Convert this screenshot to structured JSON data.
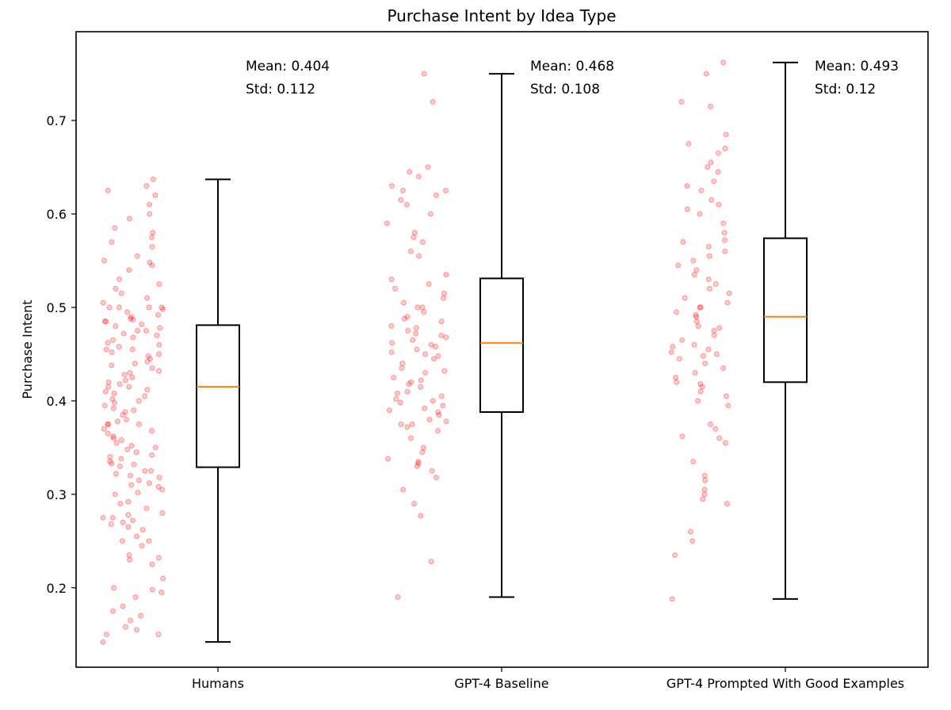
{
  "chart_data": {
    "type": "box",
    "title": "Purchase Intent by Idea Type",
    "xlabel": "",
    "ylabel": "Purchase Intent",
    "ylim": [
      0.115,
      0.795
    ],
    "yticks": [
      0.2,
      0.3,
      0.4,
      0.5,
      0.6,
      0.7
    ],
    "ytick_labels": [
      "0.2",
      "0.3",
      "0.4",
      "0.5",
      "0.6",
      "0.7"
    ],
    "grid": false,
    "colors": {
      "points": "#ff0000",
      "median": "#ff7f0e",
      "box": "#000000"
    },
    "groups": [
      {
        "label": "Humans",
        "box": {
          "whisker_low": 0.142,
          "q1": 0.329,
          "median": 0.415,
          "q3": 0.481,
          "whisker_high": 0.637
        },
        "annotation": {
          "mean": "Mean: 0.404",
          "std": "Std: 0.112"
        },
        "points": [
          0.142,
          0.15,
          0.15,
          0.155,
          0.158,
          0.165,
          0.17,
          0.175,
          0.18,
          0.19,
          0.195,
          0.198,
          0.2,
          0.21,
          0.225,
          0.23,
          0.232,
          0.235,
          0.245,
          0.25,
          0.25,
          0.255,
          0.262,
          0.265,
          0.268,
          0.27,
          0.272,
          0.275,
          0.275,
          0.278,
          0.28,
          0.285,
          0.29,
          0.292,
          0.3,
          0.302,
          0.305,
          0.308,
          0.31,
          0.312,
          0.315,
          0.318,
          0.32,
          0.322,
          0.325,
          0.325,
          0.33,
          0.332,
          0.333,
          0.335,
          0.338,
          0.34,
          0.342,
          0.345,
          0.348,
          0.35,
          0.352,
          0.355,
          0.358,
          0.36,
          0.362,
          0.365,
          0.368,
          0.37,
          0.375,
          0.375,
          0.375,
          0.378,
          0.38,
          0.385,
          0.388,
          0.39,
          0.392,
          0.395,
          0.398,
          0.4,
          0.402,
          0.405,
          0.408,
          0.41,
          0.412,
          0.415,
          0.415,
          0.418,
          0.42,
          0.422,
          0.425,
          0.428,
          0.43,
          0.432,
          0.435,
          0.438,
          0.44,
          0.442,
          0.445,
          0.448,
          0.45,
          0.452,
          0.455,
          0.455,
          0.458,
          0.46,
          0.462,
          0.465,
          0.468,
          0.47,
          0.472,
          0.475,
          0.475,
          0.478,
          0.48,
          0.482,
          0.485,
          0.485,
          0.487,
          0.488,
          0.49,
          0.492,
          0.495,
          0.498,
          0.5,
          0.5,
          0.5,
          0.5,
          0.505,
          0.51,
          0.515,
          0.52,
          0.525,
          0.53,
          0.54,
          0.545,
          0.548,
          0.55,
          0.555,
          0.565,
          0.57,
          0.575,
          0.58,
          0.585,
          0.595,
          0.6,
          0.61,
          0.62,
          0.625,
          0.63,
          0.637
        ]
      },
      {
        "label": "GPT-4 Baseline",
        "box": {
          "whisker_low": 0.19,
          "q1": 0.388,
          "median": 0.462,
          "q3": 0.531,
          "whisker_high": 0.75
        },
        "annotation": {
          "mean": "Mean: 0.468",
          "std": "Std: 0.108"
        },
        "points": [
          0.19,
          0.228,
          0.277,
          0.29,
          0.305,
          0.318,
          0.325,
          0.33,
          0.333,
          0.335,
          0.338,
          0.345,
          0.35,
          0.36,
          0.368,
          0.372,
          0.375,
          0.375,
          0.378,
          0.38,
          0.385,
          0.388,
          0.39,
          0.392,
          0.395,
          0.398,
          0.4,
          0.402,
          0.405,
          0.408,
          0.41,
          0.415,
          0.418,
          0.42,
          0.422,
          0.425,
          0.43,
          0.432,
          0.435,
          0.44,
          0.445,
          0.448,
          0.45,
          0.452,
          0.455,
          0.458,
          0.46,
          0.462,
          0.465,
          0.468,
          0.47,
          0.472,
          0.475,
          0.478,
          0.48,
          0.485,
          0.488,
          0.49,
          0.495,
          0.5,
          0.5,
          0.505,
          0.51,
          0.515,
          0.52,
          0.525,
          0.53,
          0.535,
          0.555,
          0.56,
          0.57,
          0.575,
          0.58,
          0.59,
          0.6,
          0.61,
          0.615,
          0.62,
          0.625,
          0.625,
          0.63,
          0.64,
          0.645,
          0.65,
          0.72,
          0.75
        ]
      },
      {
        "label": "GPT-4 Prompted With Good Examples",
        "box": {
          "whisker_low": 0.188,
          "q1": 0.42,
          "median": 0.49,
          "q3": 0.574,
          "whisker_high": 0.762
        },
        "annotation": {
          "mean": "Mean: 0.493",
          "std": "Std: 0.12"
        },
        "points": [
          0.188,
          0.235,
          0.25,
          0.26,
          0.29,
          0.295,
          0.3,
          0.305,
          0.315,
          0.32,
          0.335,
          0.355,
          0.36,
          0.362,
          0.37,
          0.375,
          0.395,
          0.4,
          0.405,
          0.41,
          0.415,
          0.418,
          0.42,
          0.425,
          0.43,
          0.435,
          0.44,
          0.445,
          0.448,
          0.45,
          0.452,
          0.455,
          0.458,
          0.46,
          0.465,
          0.47,
          0.475,
          0.478,
          0.48,
          0.485,
          0.49,
          0.492,
          0.495,
          0.5,
          0.5,
          0.505,
          0.51,
          0.515,
          0.52,
          0.525,
          0.53,
          0.535,
          0.54,
          0.545,
          0.55,
          0.555,
          0.56,
          0.565,
          0.57,
          0.572,
          0.58,
          0.59,
          0.6,
          0.605,
          0.61,
          0.615,
          0.625,
          0.63,
          0.635,
          0.645,
          0.65,
          0.655,
          0.665,
          0.67,
          0.675,
          0.685,
          0.715,
          0.72,
          0.75,
          0.762
        ]
      }
    ]
  }
}
